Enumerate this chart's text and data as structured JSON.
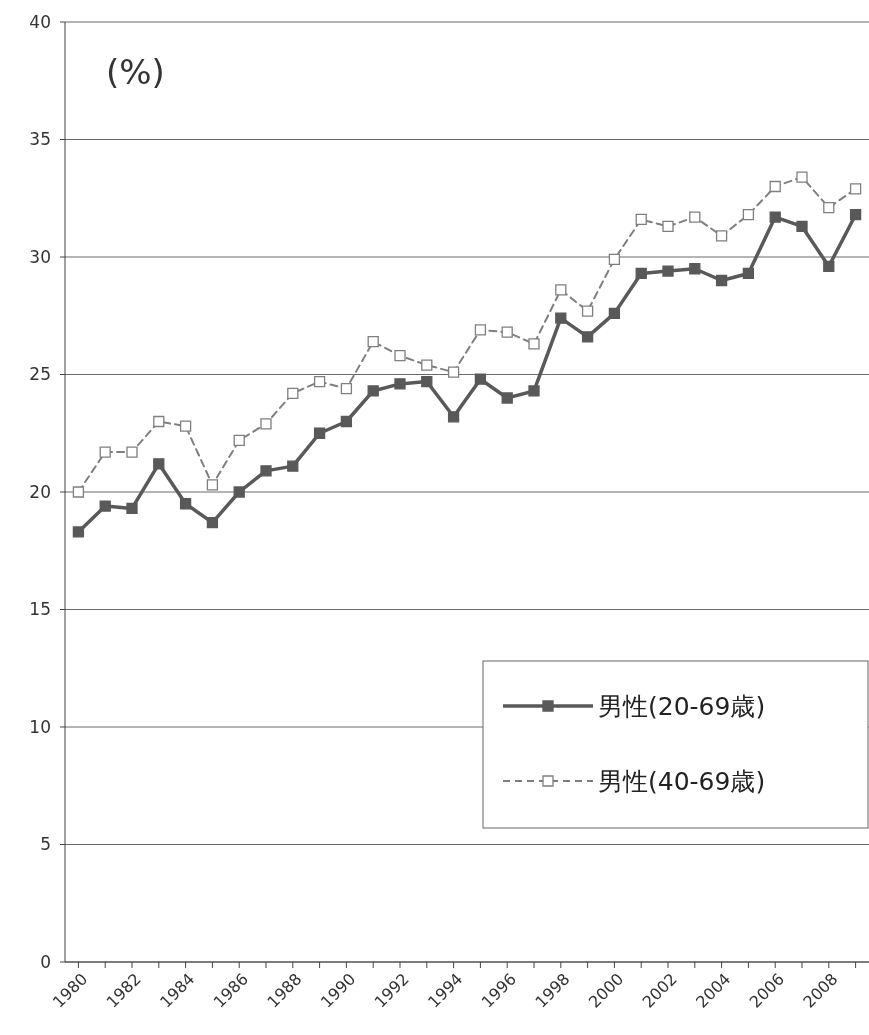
{
  "chart_data": {
    "type": "line",
    "ylabel": "(%)",
    "categories": [
      "1980",
      null,
      "1982",
      null,
      "1984",
      null,
      "1986",
      null,
      "1988",
      null,
      "1990",
      null,
      "1992",
      null,
      "1994",
      null,
      "1996",
      null,
      "1998",
      null,
      "2000",
      null,
      "2002",
      null,
      "2004",
      null,
      "2006",
      null,
      "2008",
      null
    ],
    "series": [
      {
        "name": "男性(20-69歳)",
        "color": "#595959",
        "line_style": "solid",
        "marker": "square",
        "values": [
          18.3,
          19.4,
          19.3,
          21.2,
          19.5,
          18.7,
          20.0,
          20.9,
          21.1,
          22.5,
          23.0,
          24.3,
          24.6,
          24.7,
          23.2,
          24.8,
          24.0,
          24.3,
          27.4,
          26.6,
          27.6,
          29.3,
          29.4,
          29.5,
          29.0,
          29.3,
          31.7,
          31.3,
          29.6,
          31.8
        ]
      },
      {
        "name": "男性(40-69歳)",
        "color": "#7f7f7f",
        "line_style": "dashed",
        "marker": "square",
        "values": [
          20.0,
          21.7,
          21.7,
          23.0,
          22.8,
          20.3,
          22.2,
          22.9,
          24.2,
          24.7,
          24.4,
          26.4,
          25.8,
          25.4,
          25.1,
          26.9,
          26.8,
          26.3,
          28.6,
          27.7,
          29.9,
          31.6,
          31.3,
          31.7,
          30.9,
          31.8,
          33.0,
          33.4,
          32.1,
          32.9
        ]
      }
    ],
    "ylim": [
      0,
      40
    ],
    "yticks": [
      0,
      5,
      10,
      15,
      20,
      25,
      30,
      35,
      40
    ],
    "grid": "y",
    "legend": "right"
  }
}
